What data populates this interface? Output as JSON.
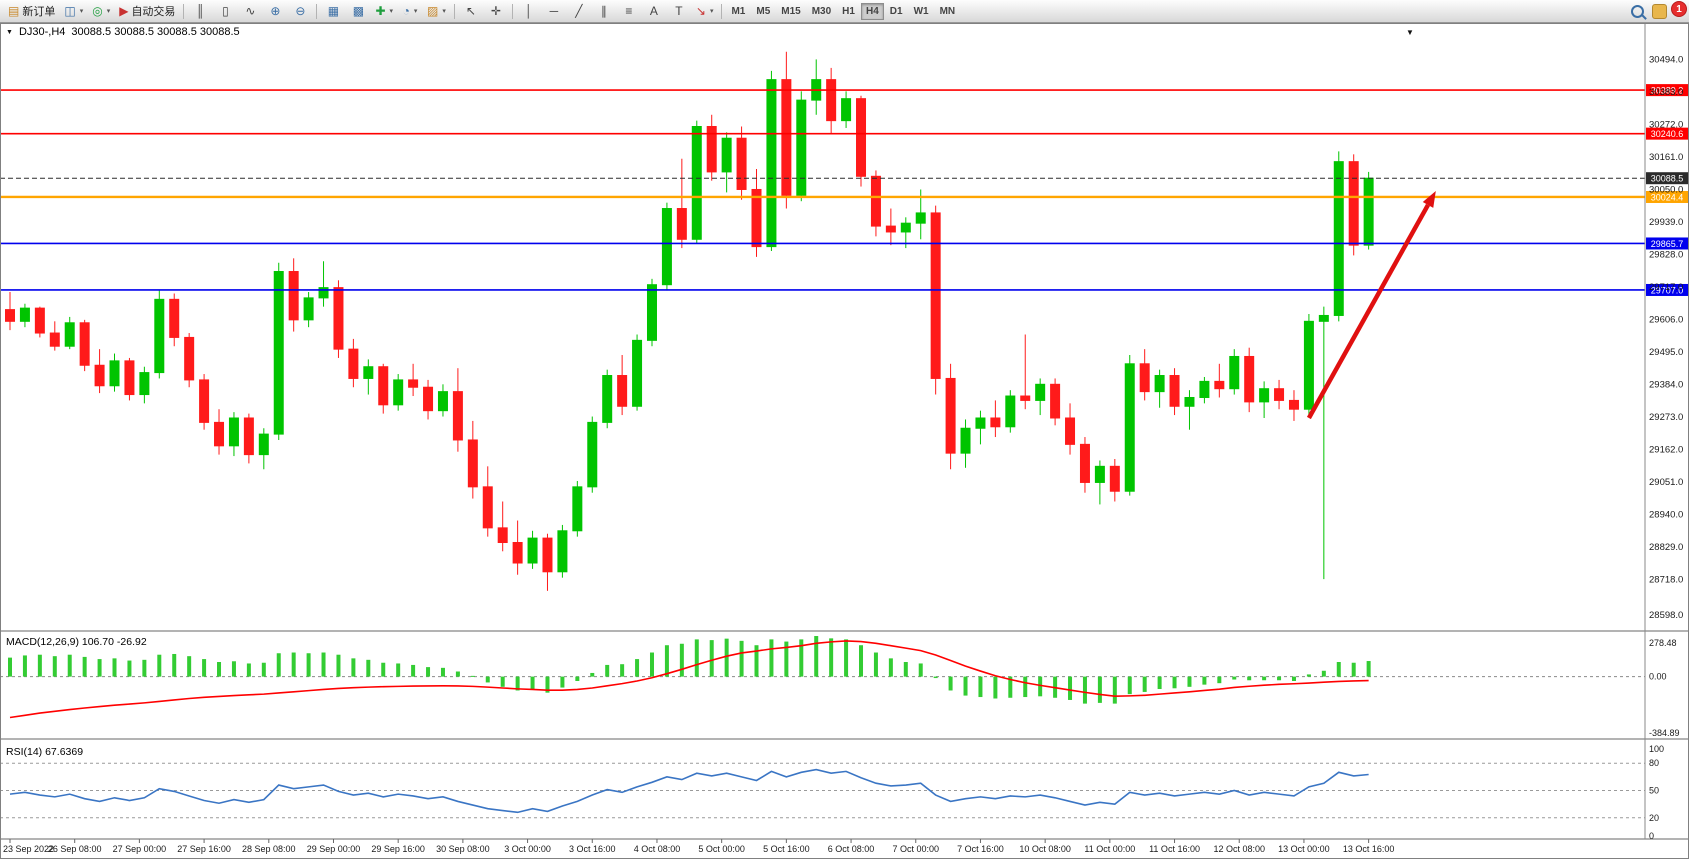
{
  "toolbar": {
    "new_order_label": "新订单",
    "auto_trading_label": "自动交易",
    "timeframes": [
      "M1",
      "M5",
      "M15",
      "M30",
      "H1",
      "H4",
      "D1",
      "W1",
      "MN"
    ],
    "active_timeframe": "H4",
    "notification_count": "1"
  },
  "icons": {
    "new_order": "▤",
    "new_chart": "◫",
    "profiles": "◎",
    "auto_trading": "▶",
    "bars": "║",
    "candles": "▯",
    "line_chart": "∿",
    "zoom_in": "⊕",
    "zoom_out": "⊖",
    "tile_windows": "▦",
    "cascade": "▩",
    "indicators": "✚",
    "periods": "◔",
    "templates": "▨",
    "cursor": "↖",
    "crosshair": "✛",
    "vline": "│",
    "hline": "─",
    "trendline": "╱",
    "channel": "∥",
    "fibonacci": "≡",
    "text": "A",
    "label": "T",
    "arrows": "↘",
    "dropdown": "▾",
    "chart_menu": "▼"
  },
  "chart": {
    "title_symbol_period": "DJ30-,H4",
    "title_ohlc": "30088.5 30088.5 30088.5 30088.5"
  },
  "chart_data": {
    "type": "candlestick",
    "symbol": "DJ30-",
    "timeframe": "H4",
    "colors": {
      "up": "#00c400",
      "down": "#ff1a1a",
      "macd_hist": "#33cc33",
      "macd_signal": "#ff0000",
      "rsi_line": "#3a75c4",
      "arrow": "#e01010",
      "axis_text": "#1a1a1a"
    },
    "price_axis_labels": [
      "30494.0",
      "30383.0",
      "30272.0",
      "30161.0",
      "30050.0",
      "29939.0",
      "29828.0",
      "29717.0",
      "29606.0",
      "29495.0",
      "29384.0",
      "29273.0",
      "29162.0",
      "29051.0",
      "28940.0",
      "28829.0",
      "28718.0",
      "28598.0"
    ],
    "price_range": [
      28560,
      30550
    ],
    "time_labels": [
      "23 Sep 2022",
      "26 Sep 08:00",
      "27 Sep 00:00",
      "27 Sep 16:00",
      "28 Sep 08:00",
      "29 Sep 00:00",
      "29 Sep 16:00",
      "30 Sep 08:00",
      "3 Oct 00:00",
      "3 Oct 16:00",
      "4 Oct 08:00",
      "5 Oct 00:00",
      "5 Oct 16:00",
      "6 Oct 08:00",
      "7 Oct 00:00",
      "7 Oct 16:00",
      "10 Oct 08:00",
      "11 Oct 00:00",
      "11 Oct 16:00",
      "12 Oct 08:00",
      "13 Oct 00:00",
      "13 Oct 16:00"
    ],
    "hlines": [
      {
        "price": 30389.2,
        "label": "30389.2",
        "color": "#ff0000",
        "width": 1.6
      },
      {
        "price": 30240.6,
        "label": "30240.6",
        "color": "#ff0000",
        "width": 1.6
      },
      {
        "price": 30088.5,
        "label": "30088.5",
        "color": "#2b2b2b",
        "width": 1,
        "dash": "5 3"
      },
      {
        "price": 30024.4,
        "label": "30024.4",
        "color": "#ffa500",
        "width": 2.4
      },
      {
        "price": 29865.7,
        "label": "29865.7",
        "color": "#0000ee",
        "width": 1.6
      },
      {
        "price": 29707.0,
        "label": "29707.0",
        "color": "#0000ee",
        "width": 1.6
      }
    ],
    "arrow": {
      "from": {
        "candle": 87,
        "price": 29270
      },
      "to": {
        "candle": 95.5,
        "price": 30045
      }
    },
    "candles": [
      [
        29640,
        29700,
        29570,
        29600
      ],
      [
        29600,
        29660,
        29580,
        29645
      ],
      [
        29645,
        29650,
        29545,
        29560
      ],
      [
        29560,
        29600,
        29500,
        29515
      ],
      [
        29515,
        29615,
        29505,
        29595
      ],
      [
        29595,
        29605,
        29430,
        29450
      ],
      [
        29450,
        29505,
        29355,
        29380
      ],
      [
        29380,
        29490,
        29360,
        29465
      ],
      [
        29465,
        29475,
        29330,
        29350
      ],
      [
        29350,
        29445,
        29320,
        29425
      ],
      [
        29425,
        29705,
        29405,
        29675
      ],
      [
        29675,
        29695,
        29515,
        29545
      ],
      [
        29545,
        29560,
        29375,
        29400
      ],
      [
        29400,
        29420,
        29230,
        29255
      ],
      [
        29255,
        29300,
        29145,
        29175
      ],
      [
        29175,
        29290,
        29140,
        29270
      ],
      [
        29270,
        29285,
        29115,
        29145
      ],
      [
        29145,
        29235,
        29095,
        29215
      ],
      [
        29215,
        29800,
        29195,
        29770
      ],
      [
        29770,
        29815,
        29565,
        29605
      ],
      [
        29605,
        29700,
        29580,
        29680
      ],
      [
        29680,
        29805,
        29650,
        29715
      ],
      [
        29715,
        29740,
        29475,
        29505
      ],
      [
        29505,
        29540,
        29375,
        29405
      ],
      [
        29405,
        29470,
        29350,
        29445
      ],
      [
        29445,
        29455,
        29285,
        29315
      ],
      [
        29315,
        29420,
        29295,
        29400
      ],
      [
        29400,
        29455,
        29345,
        29375
      ],
      [
        29375,
        29400,
        29265,
        29295
      ],
      [
        29295,
        29385,
        29275,
        29360
      ],
      [
        29360,
        29440,
        29155,
        29195
      ],
      [
        29195,
        29260,
        28995,
        29035
      ],
      [
        29035,
        29105,
        28865,
        28895
      ],
      [
        28895,
        28985,
        28815,
        28845
      ],
      [
        28845,
        28920,
        28735,
        28775
      ],
      [
        28775,
        28885,
        28755,
        28860
      ],
      [
        28860,
        28875,
        28680,
        28745
      ],
      [
        28745,
        28905,
        28725,
        28885
      ],
      [
        28885,
        29055,
        28865,
        29035
      ],
      [
        29035,
        29275,
        29015,
        29255
      ],
      [
        29255,
        29435,
        29235,
        29415
      ],
      [
        29415,
        29485,
        29280,
        29310
      ],
      [
        29310,
        29555,
        29295,
        29535
      ],
      [
        29535,
        29745,
        29515,
        29725
      ],
      [
        29725,
        30005,
        29705,
        29985
      ],
      [
        29985,
        30155,
        29850,
        29880
      ],
      [
        29880,
        30285,
        29865,
        30265
      ],
      [
        30265,
        30305,
        30080,
        30110
      ],
      [
        30110,
        30245,
        30040,
        30225
      ],
      [
        30225,
        30265,
        30015,
        30050
      ],
      [
        30050,
        30120,
        29820,
        29855
      ],
      [
        29855,
        30455,
        29840,
        30425
      ],
      [
        30425,
        30520,
        29985,
        30030
      ],
      [
        30030,
        30385,
        30010,
        30355
      ],
      [
        30355,
        30494,
        30305,
        30425
      ],
      [
        30425,
        30465,
        30240,
        30285
      ],
      [
        30285,
        30385,
        30260,
        30360
      ],
      [
        30360,
        30370,
        30060,
        30095
      ],
      [
        30095,
        30115,
        29890,
        29925
      ],
      [
        29925,
        29985,
        29860,
        29905
      ],
      [
        29905,
        29955,
        29850,
        29935
      ],
      [
        29935,
        30050,
        29880,
        29970
      ],
      [
        29970,
        29995,
        29350,
        29405
      ],
      [
        29405,
        29455,
        29095,
        29150
      ],
      [
        29150,
        29265,
        29100,
        29235
      ],
      [
        29235,
        29295,
        29180,
        29270
      ],
      [
        29270,
        29330,
        29205,
        29240
      ],
      [
        29240,
        29365,
        29220,
        29345
      ],
      [
        29345,
        29555,
        29300,
        29330
      ],
      [
        29330,
        29405,
        29280,
        29385
      ],
      [
        29385,
        29405,
        29245,
        29270
      ],
      [
        29270,
        29320,
        29145,
        29180
      ],
      [
        29180,
        29205,
        29015,
        29050
      ],
      [
        29050,
        29125,
        28975,
        29105
      ],
      [
        29105,
        29130,
        28985,
        29020
      ],
      [
        29020,
        29485,
        29005,
        29455
      ],
      [
        29455,
        29505,
        29330,
        29360
      ],
      [
        29360,
        29435,
        29305,
        29415
      ],
      [
        29415,
        29440,
        29280,
        29310
      ],
      [
        29310,
        29365,
        29230,
        29340
      ],
      [
        29340,
        29410,
        29320,
        29395
      ],
      [
        29395,
        29455,
        29340,
        29370
      ],
      [
        29370,
        29505,
        29350,
        29480
      ],
      [
        29480,
        29510,
        29290,
        29325
      ],
      [
        29325,
        29395,
        29270,
        29370
      ],
      [
        29370,
        29400,
        29300,
        29330
      ],
      [
        29330,
        29365,
        29260,
        29300
      ],
      [
        29300,
        29625,
        29280,
        29600
      ],
      [
        29600,
        29650,
        28720,
        29620
      ],
      [
        29620,
        30180,
        29600,
        30145
      ],
      [
        30145,
        30170,
        29825,
        29860
      ],
      [
        29860,
        30110,
        29845,
        30088.5
      ]
    ],
    "macd": {
      "label": "MACD(12,26,9) 106.70 -26.92",
      "axis_labels": [
        "278.48",
        "0.00",
        "-384.89"
      ],
      "axis_values": [
        278.48,
        0,
        -384.89
      ],
      "value_range": [
        -400,
        285
      ],
      "histogram": [
        130,
        145,
        150,
        140,
        150,
        135,
        120,
        125,
        110,
        115,
        150,
        155,
        140,
        120,
        100,
        105,
        90,
        95,
        160,
        165,
        160,
        165,
        150,
        125,
        115,
        95,
        90,
        80,
        65,
        60,
        35,
        5,
        -40,
        -70,
        -95,
        -85,
        -110,
        -75,
        -30,
        25,
        80,
        85,
        120,
        165,
        215,
        225,
        255,
        250,
        260,
        245,
        215,
        255,
        240,
        255,
        278,
        262,
        255,
        215,
        165,
        125,
        100,
        90,
        -10,
        -95,
        -130,
        -140,
        -150,
        -145,
        -140,
        -135,
        -145,
        -160,
        -185,
        -180,
        -185,
        -120,
        -105,
        -85,
        -80,
        -70,
        -55,
        -45,
        -20,
        -25,
        -25,
        -25,
        -30,
        15,
        40,
        100,
        95,
        106.7
      ],
      "signal": [
        -280,
        -265,
        -250,
        -238,
        -226,
        -215,
        -205,
        -196,
        -188,
        -180,
        -170,
        -160,
        -150,
        -142,
        -136,
        -130,
        -125,
        -120,
        -112,
        -104,
        -96,
        -88,
        -81,
        -76,
        -72,
        -69,
        -67,
        -65,
        -64,
        -63,
        -64,
        -67,
        -72,
        -78,
        -84,
        -88,
        -93,
        -93,
        -88,
        -78,
        -63,
        -48,
        -30,
        -8,
        20,
        50,
        82,
        112,
        140,
        162,
        175,
        190,
        200,
        212,
        228,
        238,
        244,
        240,
        228,
        212,
        195,
        178,
        148,
        110,
        72,
        38,
        6,
        -20,
        -42,
        -60,
        -76,
        -92,
        -108,
        -122,
        -134,
        -132,
        -128,
        -120,
        -112,
        -104,
        -95,
        -86,
        -74,
        -66,
        -59,
        -53,
        -49,
        -44,
        -38,
        -33,
        -30,
        -26.9
      ]
    },
    "rsi": {
      "label": "RSI(14) 67.6369",
      "axis_labels": [
        "100",
        "80",
        "50",
        "20",
        "0"
      ],
      "axis_values": [
        100,
        80,
        50,
        20,
        0
      ],
      "levels": [
        80,
        50,
        20
      ],
      "value_range": [
        0,
        100
      ],
      "values": [
        46,
        48,
        45,
        43,
        46,
        41,
        38,
        42,
        39,
        42,
        52,
        49,
        44,
        39,
        36,
        40,
        37,
        40,
        56,
        52,
        54,
        56,
        49,
        45,
        47,
        43,
        46,
        44,
        41,
        43,
        38,
        34,
        30,
        28,
        26,
        30,
        27,
        33,
        38,
        45,
        51,
        48,
        54,
        59,
        65,
        62,
        69,
        66,
        69,
        65,
        61,
        71,
        65,
        70,
        73,
        69,
        71,
        64,
        58,
        55,
        56,
        58,
        45,
        38,
        41,
        43,
        41,
        44,
        43,
        45,
        42,
        38,
        34,
        37,
        35,
        48,
        45,
        47,
        44,
        46,
        48,
        46,
        50,
        45,
        48,
        46,
        44,
        54,
        58,
        70,
        66,
        67.6
      ]
    }
  }
}
